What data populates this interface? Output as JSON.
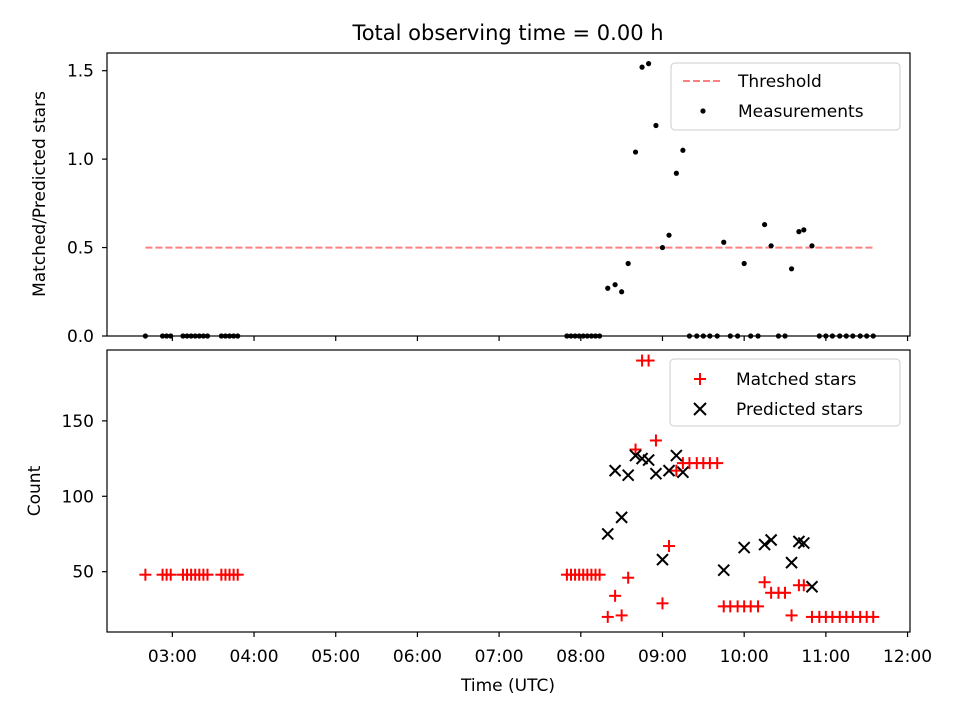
{
  "figure": {
    "title": "Total observing time = 0.00 h",
    "xlabel": "Time (UTC)",
    "x_ticks": [
      "03:00",
      "04:00",
      "05:00",
      "06:00",
      "07:00",
      "08:00",
      "09:00",
      "10:00",
      "11:00",
      "12:00"
    ]
  },
  "chart_data": [
    {
      "type": "scatter",
      "ylabel": "Matched/Predicted stars",
      "xlim": [
        2.2,
        12.03
      ],
      "ylim": [
        0,
        1.6
      ],
      "y_ticks": [
        "0.0",
        "0.5",
        "1.0",
        "1.5"
      ],
      "legend": {
        "placement": "top-right",
        "entries": [
          "Threshold",
          "Measurements"
        ]
      },
      "threshold": {
        "name": "Threshold",
        "value": 0.5,
        "x": [
          2.67,
          11.58
        ],
        "color": "#ff8080",
        "style": "dashed"
      },
      "series": [
        {
          "name": "Measurements",
          "color": "#000000",
          "marker": "dot",
          "x": [
            2.67,
            2.88,
            2.93,
            2.98,
            3.13,
            3.18,
            3.23,
            3.28,
            3.33,
            3.38,
            3.43,
            3.6,
            3.65,
            3.7,
            3.75,
            3.8,
            7.83,
            7.88,
            7.93,
            7.98,
            8.03,
            8.08,
            8.13,
            8.18,
            8.23,
            8.33,
            8.42,
            8.5,
            8.58,
            8.67,
            8.75,
            8.83,
            8.92,
            9.0,
            9.08,
            9.17,
            9.25,
            9.33,
            9.42,
            9.5,
            9.58,
            9.67,
            9.75,
            9.83,
            9.92,
            10.0,
            10.08,
            10.17,
            10.25,
            10.33,
            10.42,
            10.5,
            10.58,
            10.67,
            10.73,
            10.83,
            10.92,
            11.0,
            11.08,
            11.17,
            11.25,
            11.33,
            11.42,
            11.5,
            11.58
          ],
          "y": [
            0,
            0,
            0,
            0,
            0,
            0,
            0,
            0,
            0,
            0,
            0,
            0,
            0,
            0,
            0,
            0,
            0,
            0,
            0,
            0,
            0,
            0,
            0,
            0,
            0,
            0.27,
            0.29,
            0.25,
            0.41,
            1.04,
            1.52,
            1.54,
            1.19,
            0.5,
            0.57,
            0.92,
            1.05,
            0,
            0,
            0,
            0,
            0,
            0.53,
            0,
            0,
            0.41,
            0,
            0,
            0.63,
            0.51,
            0,
            0,
            0.38,
            0.59,
            0.6,
            0.51,
            0,
            0,
            0,
            0,
            0,
            0,
            0,
            0,
            0
          ]
        }
      ]
    },
    {
      "type": "scatter",
      "ylabel": "Count",
      "xlim": [
        2.2,
        12.03
      ],
      "ylim": [
        10,
        197
      ],
      "y_ticks": [
        "50",
        "100",
        "150"
      ],
      "legend": {
        "placement": "top-right",
        "entries": [
          "Matched stars",
          "Predicted stars"
        ]
      },
      "series": [
        {
          "name": "Matched stars",
          "color": "#ff0000",
          "marker": "plus",
          "x": [
            2.67,
            2.88,
            2.93,
            2.98,
            3.13,
            3.18,
            3.23,
            3.28,
            3.33,
            3.38,
            3.43,
            3.6,
            3.65,
            3.7,
            3.75,
            3.8,
            7.83,
            7.88,
            7.93,
            7.98,
            8.03,
            8.08,
            8.13,
            8.18,
            8.23,
            8.33,
            8.42,
            8.5,
            8.58,
            8.67,
            8.75,
            8.83,
            8.92,
            9.0,
            9.08,
            9.17,
            9.25,
            9.33,
            9.42,
            9.5,
            9.58,
            9.67,
            9.75,
            9.83,
            9.92,
            10.0,
            10.08,
            10.17,
            10.25,
            10.33,
            10.42,
            10.5,
            10.58,
            10.67,
            10.73,
            10.83,
            10.92,
            11.0,
            11.08,
            11.17,
            11.25,
            11.33,
            11.42,
            11.5,
            11.58
          ],
          "y": [
            48,
            48,
            48,
            48,
            48,
            48,
            48,
            48,
            48,
            48,
            48,
            48,
            48,
            48,
            48,
            48,
            48,
            48,
            48,
            48,
            48,
            48,
            48,
            48,
            48,
            20,
            34,
            21,
            46,
            131,
            190,
            190,
            137,
            29,
            67,
            117,
            122,
            122,
            122,
            122,
            122,
            122,
            27,
            27,
            27,
            27,
            27,
            27,
            43,
            36,
            36,
            36,
            21,
            41,
            41,
            20,
            20,
            20,
            20,
            20,
            20,
            20,
            20,
            20,
            20
          ]
        },
        {
          "name": "Predicted stars",
          "color": "#000000",
          "marker": "x",
          "x": [
            8.33,
            8.42,
            8.5,
            8.58,
            8.67,
            8.75,
            8.83,
            8.92,
            9.0,
            9.08,
            9.17,
            9.25,
            9.75,
            10.0,
            10.25,
            10.33,
            10.58,
            10.67,
            10.73,
            10.83
          ],
          "y": [
            75,
            117,
            86,
            114,
            127,
            125,
            124,
            115,
            58,
            117,
            127,
            116,
            51,
            66,
            68,
            71,
            56,
            70,
            69,
            40
          ]
        }
      ]
    }
  ]
}
